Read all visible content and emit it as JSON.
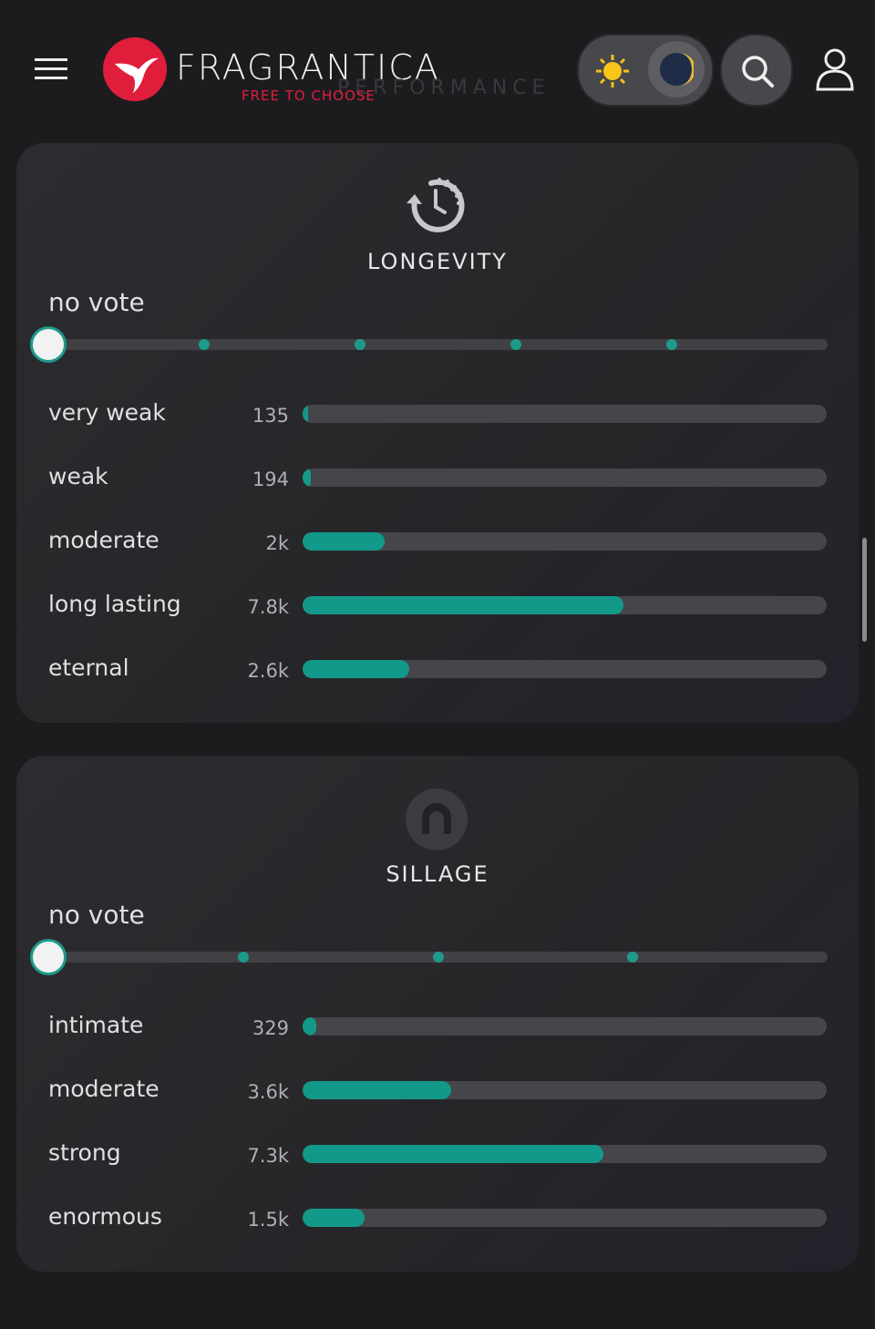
{
  "header": {
    "brand": "FRAGRANTICA",
    "tagline": "FREE TO CHOOSE",
    "section": "PERFORMANCE"
  },
  "longevity": {
    "title": "LONGEVITY",
    "vote_state": "no vote",
    "options": [
      "very weak",
      "weak",
      "moderate",
      "long lasting",
      "eternal"
    ],
    "values": [
      135,
      194,
      2000,
      7800,
      2600
    ],
    "value_labels": [
      "135",
      "194",
      "2k",
      "7.8k",
      "2.6k"
    ]
  },
  "sillage": {
    "title": "SILLAGE",
    "vote_state": "no vote",
    "options": [
      "intimate",
      "moderate",
      "strong",
      "enormous"
    ],
    "values": [
      329,
      3600,
      7300,
      1500
    ],
    "value_labels": [
      "329",
      "3.6k",
      "7.3k",
      "1.5k"
    ]
  }
}
